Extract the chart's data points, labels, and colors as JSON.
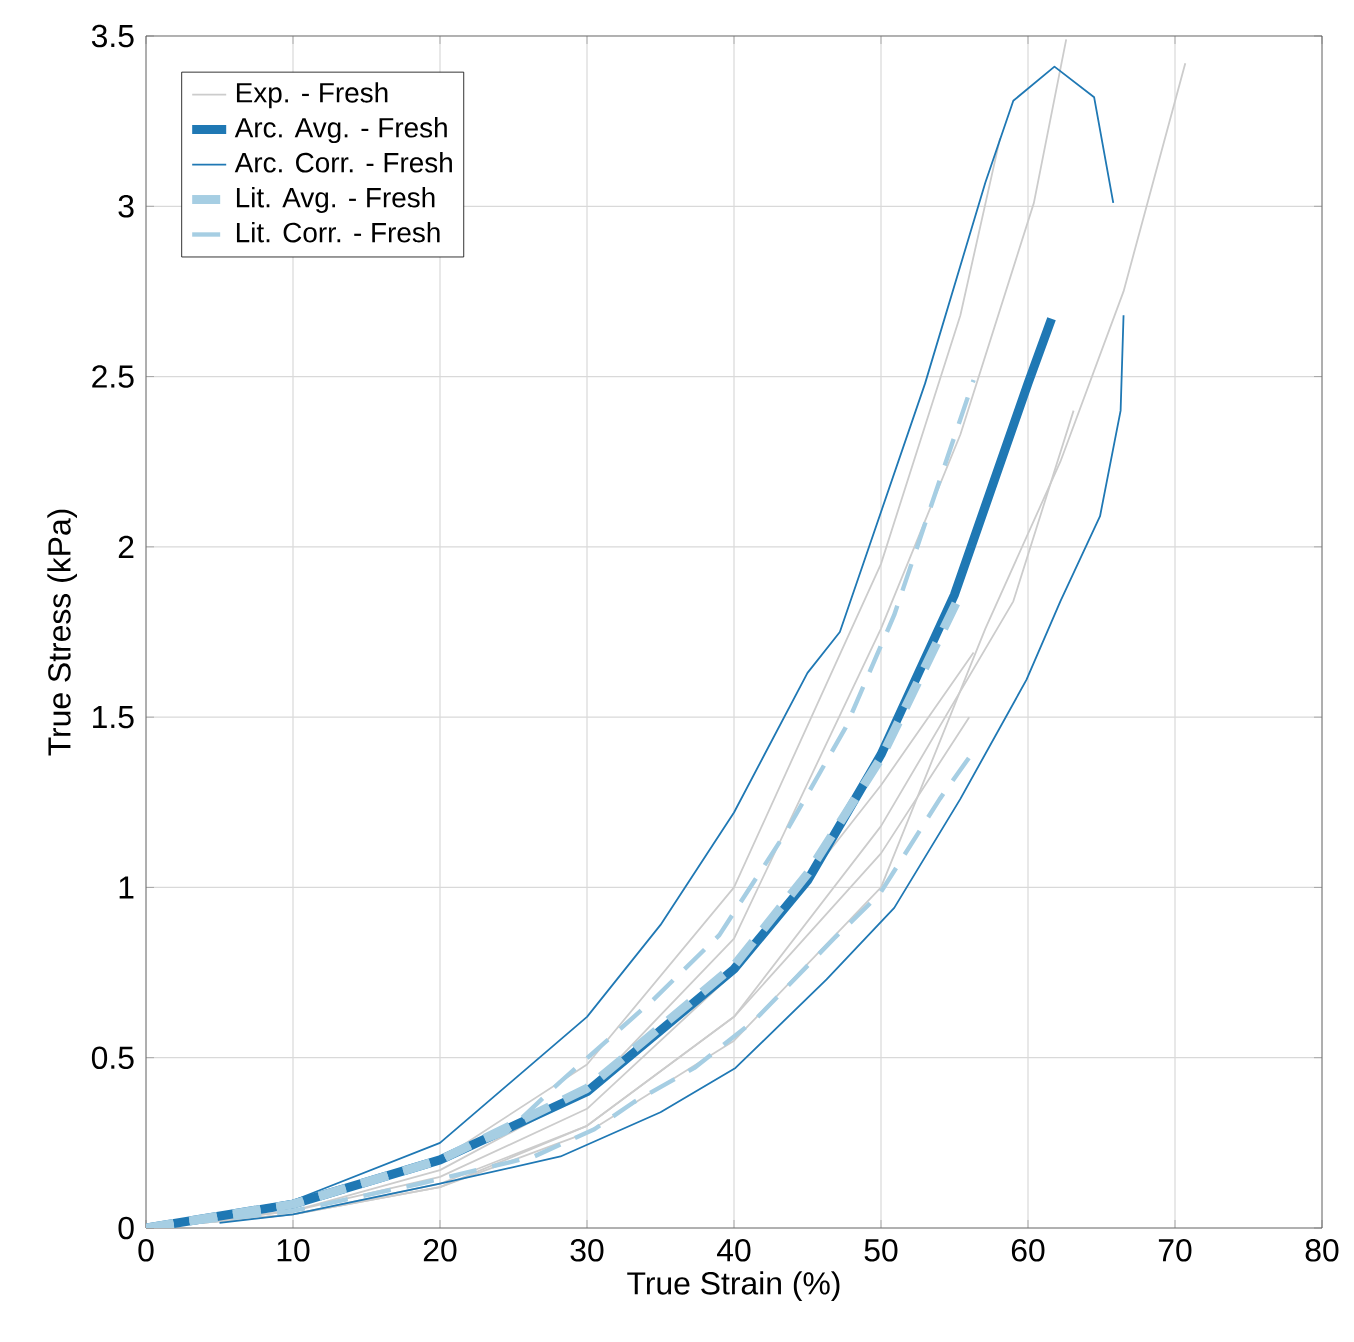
{
  "chart_data": {
    "type": "line",
    "xlabel": "True Strain (%)",
    "ylabel": "True Stress (kPa)",
    "xlim": [
      0,
      80
    ],
    "ylim": [
      0,
      3.5
    ],
    "xticks": [
      0,
      10,
      20,
      30,
      40,
      50,
      60,
      70,
      80
    ],
    "yticks": [
      0,
      0.5,
      1,
      1.5,
      2,
      2.5,
      3,
      3.5
    ],
    "grid": true,
    "legend": "top left",
    "marker": "none",
    "series": [
      {
        "name": "Exp. - Fresh",
        "color": "#cccccc",
        "line_style": "solid",
        "x": [
          0,
          10,
          20,
          30,
          40,
          50,
          55.4,
          60.4,
          62.6
        ],
        "values": [
          0,
          0.05,
          0.17,
          0.4,
          0.85,
          1.76,
          2.33,
          3.01,
          3.49
        ]
      },
      {
        "color": "#cccccc",
        "line_style": "solid",
        "x": [
          0,
          10,
          20,
          30,
          40,
          50,
          57.1,
          62.2,
          66.5,
          70.7
        ],
        "values": [
          0,
          0.04,
          0.12,
          0.28,
          0.55,
          1.0,
          1.76,
          2.25,
          2.75,
          3.42
        ]
      },
      {
        "color": "#cccccc",
        "line_style": "solid",
        "x": [
          0,
          10,
          20,
          30,
          40,
          50,
          55.4,
          58.1
        ],
        "values": [
          0,
          0.06,
          0.2,
          0.48,
          1.0,
          1.95,
          2.68,
          3.2
        ]
      },
      {
        "color": "#cccccc",
        "line_style": "solid",
        "x": [
          0,
          10,
          20,
          30,
          40,
          50,
          59,
          63.1
        ],
        "values": [
          0,
          0.04,
          0.13,
          0.3,
          0.62,
          1.18,
          1.84,
          2.4
        ]
      },
      {
        "color": "#cccccc",
        "line_style": "solid",
        "x": [
          0,
          10,
          20,
          30,
          40,
          50,
          56.3
        ],
        "values": [
          0,
          0.05,
          0.15,
          0.35,
          0.75,
          1.3,
          1.69
        ]
      },
      {
        "color": "#cccccc",
        "line_style": "solid",
        "x": [
          0,
          10,
          20,
          30,
          40,
          50,
          56
        ],
        "values": [
          0,
          0.04,
          0.12,
          0.3,
          0.62,
          1.1,
          1.5
        ]
      },
      {
        "name": "Arc. Avg. - Fresh",
        "color": "#1f78b4",
        "line_style": "solid",
        "x": [
          0,
          10,
          20,
          30,
          40,
          45,
          50,
          55,
          60,
          61.6
        ],
        "values": [
          0,
          0.07,
          0.2,
          0.4,
          0.76,
          1.02,
          1.39,
          1.86,
          2.48,
          2.67
        ]
      },
      {
        "name": "Arc. Corr. - Fresh",
        "color": "#1f78b4",
        "line_style": "solid",
        "x": [
          0,
          10,
          20,
          30,
          35,
          40,
          45,
          47.2,
          53,
          57.1,
          59,
          61.8,
          64.5,
          65.8
        ],
        "values": [
          0,
          0.08,
          0.25,
          0.62,
          0.89,
          1.22,
          1.63,
          1.75,
          2.48,
          3.07,
          3.31,
          3.41,
          3.32,
          3.01
        ]
      },
      {
        "color": "#1f78b4",
        "line_style": "solid",
        "x": [
          5,
          10,
          20,
          28.2,
          35,
          40.1,
          46.3,
          50.9,
          55.4,
          59.9,
          62.2,
          64.9,
          66.3,
          66.5
        ],
        "values": [
          0.015,
          0.04,
          0.13,
          0.21,
          0.34,
          0.47,
          0.73,
          0.94,
          1.26,
          1.61,
          1.84,
          2.09,
          2.4,
          2.68
        ]
      },
      {
        "name": "Lit. Avg. - Fresh",
        "color": "#a6cee3",
        "line_style": "dashed",
        "x": [
          0,
          10,
          20,
          30,
          40,
          45,
          50,
          55.5
        ],
        "values": [
          0,
          0.07,
          0.2,
          0.41,
          0.77,
          1.04,
          1.38,
          1.87
        ]
      },
      {
        "name": "Lit. Corr. - Fresh",
        "color": "#a6cee3",
        "line_style": "dashed",
        "x": [
          0,
          10,
          18.6,
          24.5,
          28.2,
          34.5,
          39,
          43.5,
          47.6,
          50.9,
          56.3
        ],
        "values": [
          0,
          0.07,
          0.18,
          0.28,
          0.43,
          0.67,
          0.86,
          1.16,
          1.47,
          1.8,
          2.49
        ]
      },
      {
        "color": "#a6cee3",
        "line_style": "dashed",
        "x": [
          0,
          10,
          18.6,
          26.4,
          30.5,
          33.2,
          37.3,
          41.4,
          46.8,
          49.9,
          54,
          56.3
        ],
        "values": [
          0,
          0.05,
          0.13,
          0.21,
          0.29,
          0.37,
          0.47,
          0.61,
          0.85,
          0.98,
          1.26,
          1.4
        ]
      }
    ]
  }
}
